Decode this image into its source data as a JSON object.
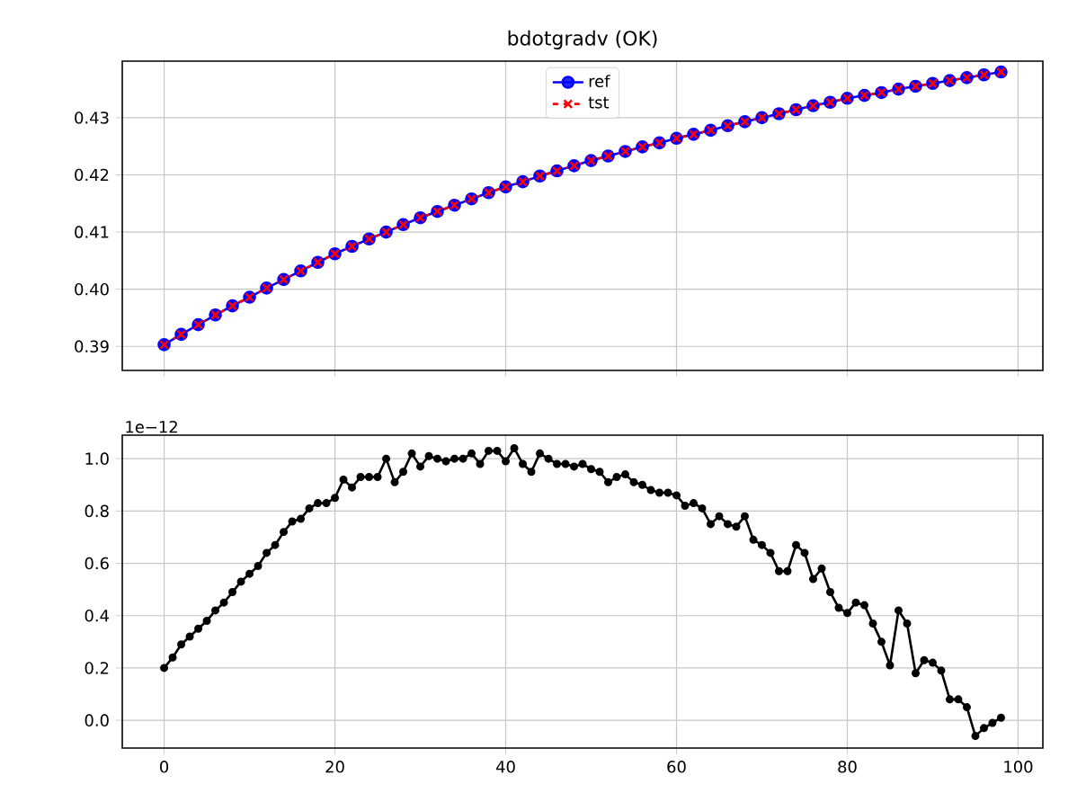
{
  "chart_data": [
    {
      "type": "line",
      "title": "bdotgradv (OK)",
      "x": [
        0,
        2,
        4,
        6,
        8,
        10,
        12,
        14,
        16,
        18,
        20,
        22,
        24,
        26,
        28,
        30,
        32,
        34,
        36,
        38,
        40,
        42,
        44,
        46,
        48,
        50,
        52,
        54,
        56,
        58,
        60,
        62,
        64,
        66,
        68,
        70,
        72,
        74,
        76,
        78,
        80,
        82,
        84,
        86,
        88,
        90,
        92,
        94,
        96,
        98
      ],
      "series": [
        {
          "name": "ref",
          "color": "#0000ff",
          "marker": "circle",
          "line_style": "solid",
          "values": [
            0.3903,
            0.3921,
            0.3938,
            0.3955,
            0.3971,
            0.3986,
            0.4002,
            0.4017,
            0.4032,
            0.4047,
            0.4062,
            0.4075,
            0.4088,
            0.41,
            0.4113,
            0.4125,
            0.4136,
            0.4147,
            0.4158,
            0.4169,
            0.4179,
            0.4188,
            0.4198,
            0.4207,
            0.4216,
            0.4225,
            0.4233,
            0.4241,
            0.4249,
            0.4256,
            0.4264,
            0.4271,
            0.4278,
            0.4286,
            0.4293,
            0.43,
            0.4307,
            0.4314,
            0.4321,
            0.4327,
            0.4334,
            0.4339,
            0.4344,
            0.435,
            0.4355,
            0.436,
            0.4365,
            0.437,
            0.4375,
            0.438
          ]
        },
        {
          "name": "tst",
          "color": "#ff0000",
          "marker": "cross",
          "line_style": "dashed",
          "values": [
            0.3903,
            0.3921,
            0.3938,
            0.3955,
            0.3971,
            0.3986,
            0.4002,
            0.4017,
            0.4032,
            0.4047,
            0.4062,
            0.4075,
            0.4088,
            0.41,
            0.4113,
            0.4125,
            0.4136,
            0.4147,
            0.4158,
            0.4169,
            0.4179,
            0.4188,
            0.4198,
            0.4207,
            0.4216,
            0.4225,
            0.4233,
            0.4241,
            0.4249,
            0.4256,
            0.4264,
            0.4271,
            0.4278,
            0.4286,
            0.4293,
            0.43,
            0.4307,
            0.4314,
            0.4321,
            0.4327,
            0.4334,
            0.4339,
            0.4344,
            0.435,
            0.4355,
            0.436,
            0.4365,
            0.437,
            0.4375,
            0.438
          ]
        }
      ],
      "xlim": [
        -4.9,
        102.9
      ],
      "ylim": [
        0.3858,
        0.4399
      ],
      "xticks": [
        {
          "value": 0,
          "label": null
        },
        {
          "value": 20,
          "label": null
        },
        {
          "value": 40,
          "label": null
        },
        {
          "value": 60,
          "label": null
        },
        {
          "value": 80,
          "label": null
        },
        {
          "value": 100,
          "label": null
        }
      ],
      "yticks": [
        {
          "value": 0.39,
          "label": "0.39"
        },
        {
          "value": 0.4,
          "label": "0.40"
        },
        {
          "value": 0.41,
          "label": "0.41"
        },
        {
          "value": 0.42,
          "label": "0.42"
        },
        {
          "value": 0.43,
          "label": "0.43"
        }
      ],
      "grid": true,
      "legend": "top",
      "tick_labels": "y"
    },
    {
      "type": "line",
      "annotations": [
        "1e−12"
      ],
      "x": [
        0,
        1,
        2,
        3,
        4,
        5,
        6,
        7,
        8,
        9,
        10,
        11,
        12,
        13,
        14,
        15,
        16,
        17,
        18,
        19,
        20,
        21,
        22,
        23,
        24,
        25,
        26,
        27,
        28,
        29,
        30,
        31,
        32,
        33,
        34,
        35,
        36,
        37,
        38,
        39,
        40,
        41,
        42,
        43,
        44,
        45,
        46,
        47,
        48,
        49,
        50,
        51,
        52,
        53,
        54,
        55,
        56,
        57,
        58,
        59,
        60,
        61,
        62,
        63,
        64,
        65,
        66,
        67,
        68,
        69,
        70,
        71,
        72,
        73,
        74,
        75,
        76,
        77,
        78,
        79,
        80,
        81,
        82,
        83,
        84,
        85,
        86,
        87,
        88,
        89,
        90,
        91,
        92,
        93,
        94,
        95,
        96,
        97,
        98
      ],
      "series": [
        {
          "color": "#000000",
          "marker": "circle",
          "line_style": "solid",
          "values": [
            0.2,
            0.24,
            0.29,
            0.32,
            0.35,
            0.38,
            0.42,
            0.45,
            0.49,
            0.53,
            0.56,
            0.59,
            0.64,
            0.67,
            0.72,
            0.76,
            0.77,
            0.81,
            0.83,
            0.83,
            0.85,
            0.92,
            0.89,
            0.93,
            0.93,
            0.93,
            1.0,
            0.91,
            0.95,
            1.02,
            0.97,
            1.01,
            1.0,
            0.99,
            1.0,
            1.0,
            1.02,
            0.98,
            1.03,
            1.03,
            0.99,
            1.04,
            0.98,
            0.95,
            1.02,
            1.0,
            0.98,
            0.98,
            0.97,
            0.98,
            0.96,
            0.95,
            0.91,
            0.93,
            0.94,
            0.91,
            0.9,
            0.88,
            0.87,
            0.87,
            0.86,
            0.82,
            0.83,
            0.81,
            0.75,
            0.78,
            0.75,
            0.74,
            0.78,
            0.69,
            0.67,
            0.64,
            0.57,
            0.57,
            0.67,
            0.64,
            0.54,
            0.58,
            0.49,
            0.43,
            0.41,
            0.45,
            0.44,
            0.37,
            0.3,
            0.21,
            0.42,
            0.37,
            0.18,
            0.23,
            0.22,
            0.19,
            0.08,
            0.08,
            0.05,
            -0.06,
            -0.03,
            -0.01,
            0.01
          ]
        }
      ],
      "xlim": [
        -4.9,
        102.9
      ],
      "ylim": [
        -0.106,
        1.09
      ],
      "xticks": [
        0,
        20,
        40,
        60,
        80,
        100
      ],
      "yticks": [
        {
          "value": 0.0,
          "label": "0.0"
        },
        {
          "value": 0.2,
          "label": "0.2"
        },
        {
          "value": 0.4,
          "label": "0.4"
        },
        {
          "value": 0.6,
          "label": "0.6"
        },
        {
          "value": 0.8,
          "label": "0.8"
        },
        {
          "value": 1.0,
          "label": "1.0"
        }
      ],
      "grid": true
    }
  ]
}
